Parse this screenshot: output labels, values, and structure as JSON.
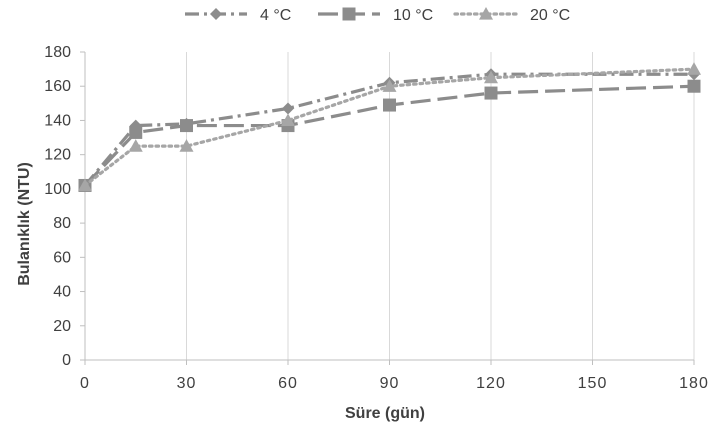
{
  "chart_data": {
    "type": "line",
    "xlabel": "Süre (gün)",
    "ylabel": "Bulanıklık (NTU)",
    "xlim": [
      0,
      180
    ],
    "ylim": [
      0,
      180
    ],
    "x_ticks": [
      0,
      30,
      60,
      90,
      120,
      150,
      180
    ],
    "y_ticks": [
      0,
      20,
      40,
      60,
      80,
      100,
      120,
      140,
      160,
      180
    ],
    "grid": "vertical",
    "legend_position": "top",
    "series": [
      {
        "name": "4 °C",
        "marker": "diamond",
        "dash": "dash-dot",
        "color": "#8c8c8c",
        "points": [
          [
            0,
            102
          ],
          [
            15,
            137
          ],
          [
            30,
            138
          ],
          [
            60,
            147
          ],
          [
            90,
            162
          ],
          [
            120,
            167
          ],
          [
            180,
            167
          ]
        ]
      },
      {
        "name": "10 °C",
        "marker": "square",
        "dash": "long-dash",
        "color": "#8c8c8c",
        "points": [
          [
            0,
            102
          ],
          [
            15,
            133
          ],
          [
            30,
            137
          ],
          [
            60,
            137
          ],
          [
            90,
            149
          ],
          [
            120,
            156
          ],
          [
            180,
            160
          ]
        ]
      },
      {
        "name": "20 °C",
        "marker": "triangle",
        "dash": "dotted",
        "color": "#a6a6a6",
        "points": [
          [
            0,
            102
          ],
          [
            15,
            125
          ],
          [
            30,
            125
          ],
          [
            60,
            140
          ],
          [
            90,
            160
          ],
          [
            120,
            165
          ],
          [
            180,
            170
          ]
        ]
      }
    ]
  }
}
